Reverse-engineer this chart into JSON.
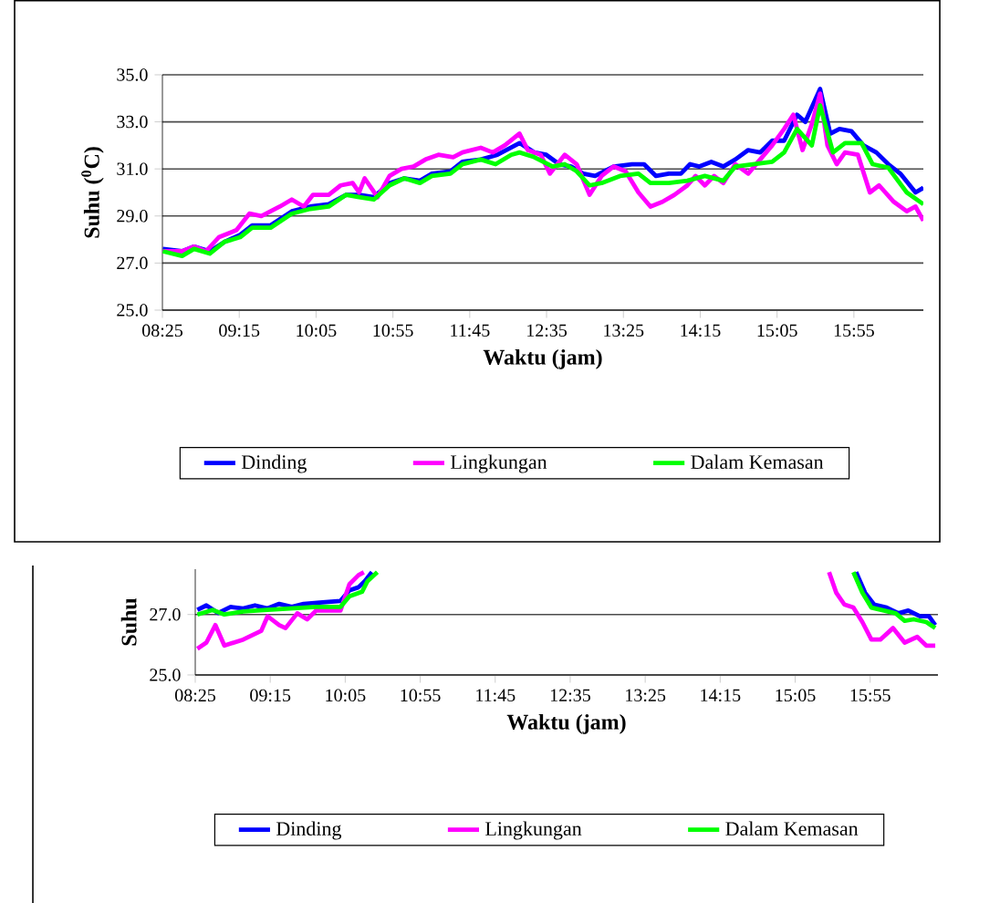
{
  "chart_data": [
    {
      "type": "line",
      "xlabel": "Waktu (jam)",
      "ylabel": "Suhu ($^{0}$C)",
      "xlim": [
        8.4167,
        16.67
      ],
      "ylim": [
        25,
        35
      ],
      "xticks": [
        {
          "value": 8.4167,
          "label": "08:25"
        },
        {
          "value": 9.25,
          "label": "09:15"
        },
        {
          "value": 10.0833,
          "label": "10:05"
        },
        {
          "value": 10.9167,
          "label": "10:55"
        },
        {
          "value": 11.75,
          "label": "11:45"
        },
        {
          "value": 12.5833,
          "label": "12:35"
        },
        {
          "value": 13.4167,
          "label": "13:25"
        },
        {
          "value": 14.25,
          "label": "14:15"
        },
        {
          "value": 15.0833,
          "label": "15:05"
        },
        {
          "value": 15.9167,
          "label": "15:55"
        }
      ],
      "yticks": [
        {
          "value": 25,
          "label": "25.0"
        },
        {
          "value": 27,
          "label": "27.0"
        },
        {
          "value": 29,
          "label": "29.0"
        },
        {
          "value": 31,
          "label": "31.0"
        },
        {
          "value": 33,
          "label": "33.0"
        },
        {
          "value": 35,
          "label": "35.0"
        }
      ],
      "grid": "y",
      "legend": "bottom",
      "series": [
        {
          "name": "Dinding",
          "color": "#0000ff",
          "x": [
            8.42,
            8.63,
            8.76,
            8.93,
            9.09,
            9.26,
            9.39,
            9.59,
            9.82,
            10.02,
            10.22,
            10.41,
            10.55,
            10.71,
            10.88,
            11.04,
            11.21,
            11.34,
            11.54,
            11.67,
            11.87,
            12.05,
            12.29,
            12.45,
            12.58,
            12.72,
            12.85,
            12.98,
            13.11,
            13.31,
            13.51,
            13.64,
            13.77,
            13.91,
            14.04,
            14.14,
            14.24,
            14.37,
            14.5,
            14.63,
            14.77,
            14.9,
            15.03,
            15.16,
            15.3,
            15.39,
            15.55,
            15.66,
            15.76,
            15.89,
            16.02,
            16.16,
            16.29,
            16.42,
            16.585,
            16.67
          ],
          "values": [
            27.6,
            27.5,
            27.7,
            27.5,
            27.9,
            28.2,
            28.6,
            28.6,
            29.2,
            29.4,
            29.5,
            29.9,
            29.9,
            29.8,
            30.4,
            30.6,
            30.5,
            30.8,
            30.9,
            31.3,
            31.4,
            31.6,
            32.1,
            31.7,
            31.6,
            31.2,
            31.1,
            30.8,
            30.7,
            31.1,
            31.2,
            31.2,
            30.7,
            30.8,
            30.8,
            31.2,
            31.1,
            31.3,
            31.1,
            31.4,
            31.8,
            31.7,
            32.2,
            32.2,
            33.3,
            33.0,
            34.4,
            32.5,
            32.7,
            32.6,
            32.0,
            31.7,
            31.2,
            30.8,
            30.0,
            30.2
          ]
        },
        {
          "name": "Lingkungan",
          "color": "#ff00ff",
          "x": [
            8.42,
            8.63,
            8.76,
            8.89,
            9.03,
            9.22,
            9.36,
            9.49,
            9.69,
            9.82,
            9.95,
            10.05,
            10.22,
            10.35,
            10.48,
            10.55,
            10.61,
            10.75,
            10.88,
            11.01,
            11.14,
            11.27,
            11.41,
            11.57,
            11.67,
            11.87,
            12.0,
            12.13,
            12.29,
            12.38,
            12.52,
            12.62,
            12.78,
            12.91,
            13.05,
            13.18,
            13.31,
            13.44,
            13.58,
            13.71,
            13.84,
            13.97,
            14.11,
            14.2,
            14.3,
            14.4,
            14.5,
            14.63,
            14.77,
            14.9,
            15.03,
            15.16,
            15.26,
            15.36,
            15.46,
            15.55,
            15.63,
            15.73,
            15.82,
            15.96,
            16.09,
            16.19,
            16.35,
            16.49,
            16.585,
            16.67
          ],
          "values": [
            27.5,
            27.5,
            27.7,
            27.5,
            28.1,
            28.4,
            29.1,
            29.0,
            29.4,
            29.7,
            29.4,
            29.9,
            29.9,
            30.3,
            30.4,
            30.0,
            30.6,
            29.8,
            30.7,
            31.0,
            31.1,
            31.4,
            31.6,
            31.5,
            31.7,
            31.9,
            31.7,
            32.0,
            32.5,
            31.8,
            31.6,
            30.8,
            31.6,
            31.2,
            29.9,
            30.7,
            31.1,
            30.9,
            30.0,
            29.4,
            29.6,
            29.9,
            30.3,
            30.7,
            30.3,
            30.7,
            30.4,
            31.2,
            30.8,
            31.4,
            32.0,
            32.7,
            33.3,
            31.8,
            32.9,
            34.2,
            32.0,
            31.2,
            31.7,
            31.6,
            30.0,
            30.3,
            29.6,
            29.2,
            29.4,
            28.8
          ]
        },
        {
          "name": "Dalam Kemasan",
          "color": "#00ff00",
          "x": [
            8.42,
            8.63,
            8.76,
            8.93,
            9.09,
            9.26,
            9.39,
            9.59,
            9.82,
            10.02,
            10.22,
            10.41,
            10.55,
            10.71,
            10.88,
            11.04,
            11.21,
            11.34,
            11.54,
            11.67,
            11.87,
            12.03,
            12.2,
            12.29,
            12.45,
            12.65,
            12.78,
            12.91,
            13.05,
            13.18,
            13.38,
            13.58,
            13.71,
            13.91,
            14.11,
            14.3,
            14.5,
            14.63,
            14.83,
            15.03,
            15.16,
            15.3,
            15.46,
            15.55,
            15.69,
            15.82,
            16.0,
            16.12,
            16.29,
            16.49,
            16.67
          ],
          "values": [
            27.5,
            27.3,
            27.6,
            27.4,
            27.9,
            28.1,
            28.5,
            28.5,
            29.1,
            29.3,
            29.4,
            29.9,
            29.8,
            29.7,
            30.3,
            30.6,
            30.4,
            30.7,
            30.8,
            31.2,
            31.4,
            31.2,
            31.6,
            31.7,
            31.5,
            31.1,
            31.2,
            30.9,
            30.3,
            30.4,
            30.7,
            30.8,
            30.4,
            30.4,
            30.5,
            30.7,
            30.5,
            31.1,
            31.2,
            31.3,
            31.7,
            32.7,
            32.0,
            33.7,
            31.7,
            32.1,
            32.1,
            31.2,
            31.05,
            30.0,
            29.5
          ]
        }
      ]
    },
    {
      "type": "line",
      "xlabel": "Waktu (jam)",
      "ylabel": "Suhu",
      "xlim": [
        8.4167,
        16.67
      ],
      "ylim": [
        25,
        28.5
      ],
      "xticks": [
        {
          "value": 8.4167,
          "label": "08:25"
        },
        {
          "value": 9.25,
          "label": "09:15"
        },
        {
          "value": 10.0833,
          "label": "10:05"
        },
        {
          "value": 10.9167,
          "label": "10:55"
        },
        {
          "value": 11.75,
          "label": "11:45"
        },
        {
          "value": 12.5833,
          "label": "12:35"
        },
        {
          "value": 13.4167,
          "label": "13:25"
        },
        {
          "value": 14.25,
          "label": "14:15"
        },
        {
          "value": 15.0833,
          "label": "15:05"
        },
        {
          "value": 15.9167,
          "label": "15:55"
        }
      ],
      "yticks": [
        {
          "value": 25,
          "label": "25.0"
        },
        {
          "value": 27,
          "label": "27.0"
        }
      ],
      "grid": "y",
      "legend": "bottom",
      "series": [
        {
          "name": "Dinding",
          "color": "#0000ff",
          "x": [
            8.44,
            8.54,
            8.67,
            8.81,
            8.95,
            9.08,
            9.22,
            9.35,
            9.49,
            9.62,
            9.83,
            10.03,
            10.13,
            10.23,
            10.3,
            10.38,
            13.0,
            15.76,
            15.86,
            15.96,
            16.1,
            16.23,
            16.34,
            16.47,
            16.57,
            16.64
          ],
          "values": [
            27.15,
            27.3,
            27.05,
            27.25,
            27.2,
            27.3,
            27.2,
            27.35,
            27.25,
            27.35,
            27.4,
            27.45,
            27.8,
            27.9,
            28.1,
            28.4,
            null,
            28.4,
            27.72,
            27.33,
            27.23,
            27.04,
            27.13,
            26.94,
            26.94,
            26.65
          ]
        },
        {
          "name": "Lingkungan",
          "color": "#ff00ff",
          "x": [
            8.44,
            8.54,
            8.64,
            8.74,
            8.95,
            9.15,
            9.22,
            9.35,
            9.42,
            9.55,
            9.66,
            9.76,
            10.03,
            10.13,
            10.23,
            10.29,
            13.0,
            15.46,
            15.54,
            15.63,
            15.73,
            15.83,
            15.93,
            16.03,
            16.17,
            16.3,
            16.44,
            16.54,
            16.64
          ],
          "values": [
            25.87,
            26.07,
            26.65,
            25.97,
            26.17,
            26.46,
            26.94,
            26.65,
            26.55,
            27.04,
            26.84,
            27.13,
            27.13,
            28.0,
            28.3,
            28.4,
            null,
            28.4,
            27.72,
            27.33,
            27.23,
            26.75,
            26.17,
            26.17,
            26.55,
            26.07,
            26.26,
            25.97,
            25.97
          ]
        },
        {
          "name": "Dalam Kemasan",
          "color": "#00ff00",
          "x": [
            8.44,
            8.61,
            8.74,
            8.95,
            9.22,
            9.49,
            9.76,
            10.03,
            10.13,
            10.27,
            10.33,
            10.44,
            13.0,
            15.73,
            15.83,
            15.93,
            16.07,
            16.2,
            16.3,
            16.4,
            16.54,
            16.64
          ],
          "values": [
            27.0,
            27.15,
            27.0,
            27.1,
            27.15,
            27.2,
            27.25,
            27.25,
            27.6,
            27.75,
            28.1,
            28.4,
            null,
            28.4,
            27.72,
            27.23,
            27.13,
            27.04,
            26.79,
            26.84,
            26.75,
            26.55
          ]
        }
      ]
    }
  ]
}
